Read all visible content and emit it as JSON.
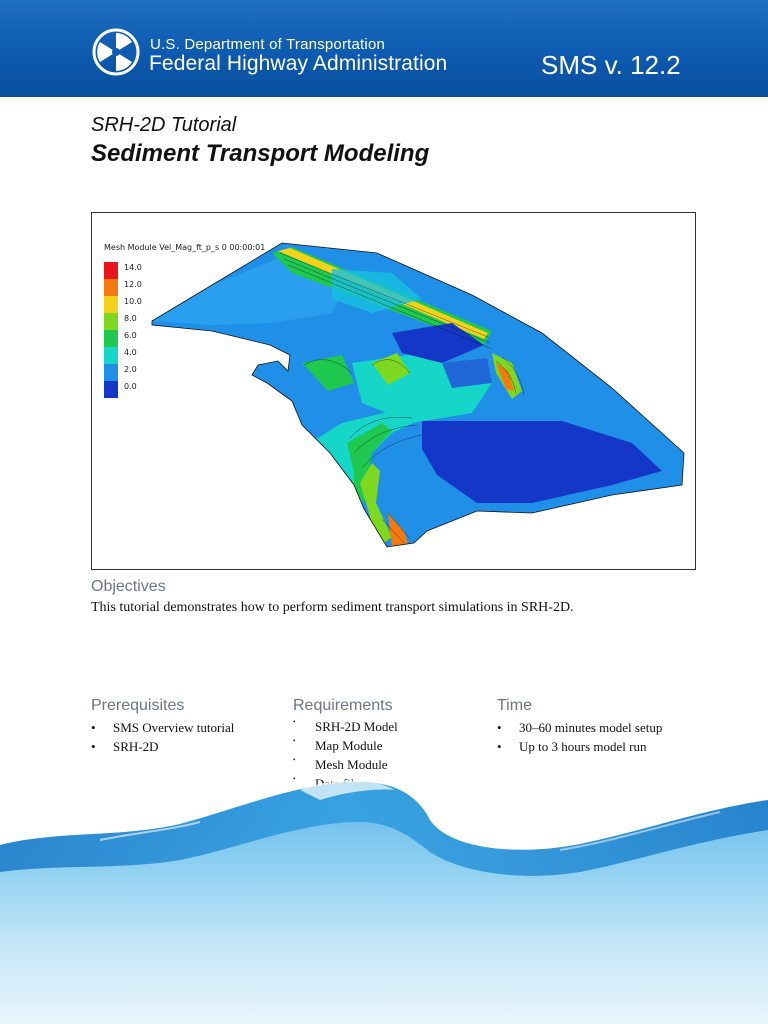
{
  "header": {
    "agency_top": "U.S. Department of Transportation",
    "agency_main": "Federal Highway Administration",
    "version": "SMS v. 12.2",
    "brand_color": "#0d5ab0"
  },
  "document": {
    "subtitle": "SRH-2D Tutorial",
    "title": "Sediment Transport Modeling"
  },
  "figure": {
    "caption": "Mesh Module  Vel_Mag_ft_p_s  0 00:00:01",
    "legend": [
      {
        "label": "14.0",
        "color": "#e8141a"
      },
      {
        "label": "12.0",
        "color": "#f47a10"
      },
      {
        "label": "10.0",
        "color": "#f2d21a"
      },
      {
        "label": "8.0",
        "color": "#7fd820"
      },
      {
        "label": "6.0",
        "color": "#1fc84f"
      },
      {
        "label": "4.0",
        "color": "#16d6c8"
      },
      {
        "label": "2.0",
        "color": "#1f8fe8"
      },
      {
        "label": "0.0",
        "color": "#1537c8"
      }
    ]
  },
  "objectives": {
    "heading": "Objectives",
    "text": "This tutorial demonstrates how to perform sediment transport simulations in SRH-2D."
  },
  "prerequisites": {
    "heading": "Prerequisites",
    "items": [
      "SMS Overview tutorial",
      "SRH-2D"
    ]
  },
  "requirements": {
    "heading": "Requirements",
    "items": [
      "SRH-2D Model",
      "Map Module",
      "Mesh Module",
      "Data files"
    ]
  },
  "time": {
    "heading": "Time",
    "items": [
      "30–60 minutes model setup",
      "Up to 3 hours model run"
    ]
  },
  "bullet_glyph": "•"
}
